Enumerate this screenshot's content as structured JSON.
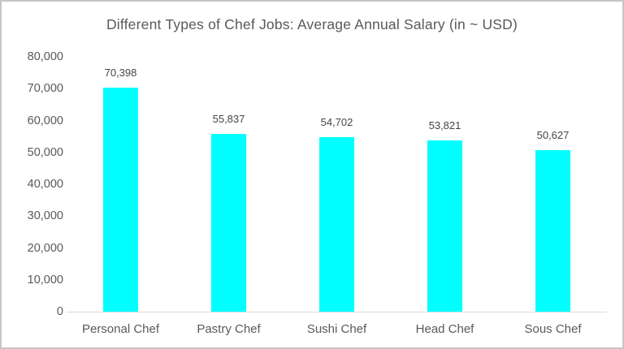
{
  "chart_data": {
    "type": "bar",
    "title": "Different Types of Chef Jobs: Average Annual Salary (in ~ USD)",
    "categories": [
      "Personal Chef",
      "Pastry Chef",
      "Sushi Chef",
      "Head Chef",
      "Sous Chef"
    ],
    "values": [
      70398,
      55837,
      54702,
      53821,
      50627
    ],
    "data_labels": [
      "70,398",
      "55,837",
      "54,702",
      "53,821",
      "50,627"
    ],
    "y_ticks": [
      {
        "label": "0",
        "value": 0
      },
      {
        "label": "10,000",
        "value": 10000
      },
      {
        "label": "20,000",
        "value": 20000
      },
      {
        "label": "30,000",
        "value": 30000
      },
      {
        "label": "40,000",
        "value": 40000
      },
      {
        "label": "50,000",
        "value": 50000
      },
      {
        "label": "60,000",
        "value": 60000
      },
      {
        "label": "70,000",
        "value": 70000
      },
      {
        "label": "80,000",
        "value": 80000
      }
    ],
    "ylim": [
      0,
      80000
    ],
    "xlabel": "",
    "ylabel": "",
    "grid": false,
    "legend": false,
    "bar_color": "#00ffff",
    "axis_line_color": "#d9d9d9",
    "text_color": "#595959",
    "data_label_color": "#444444",
    "background_color": "#ffffff",
    "border_color": "#c6c6c6"
  }
}
